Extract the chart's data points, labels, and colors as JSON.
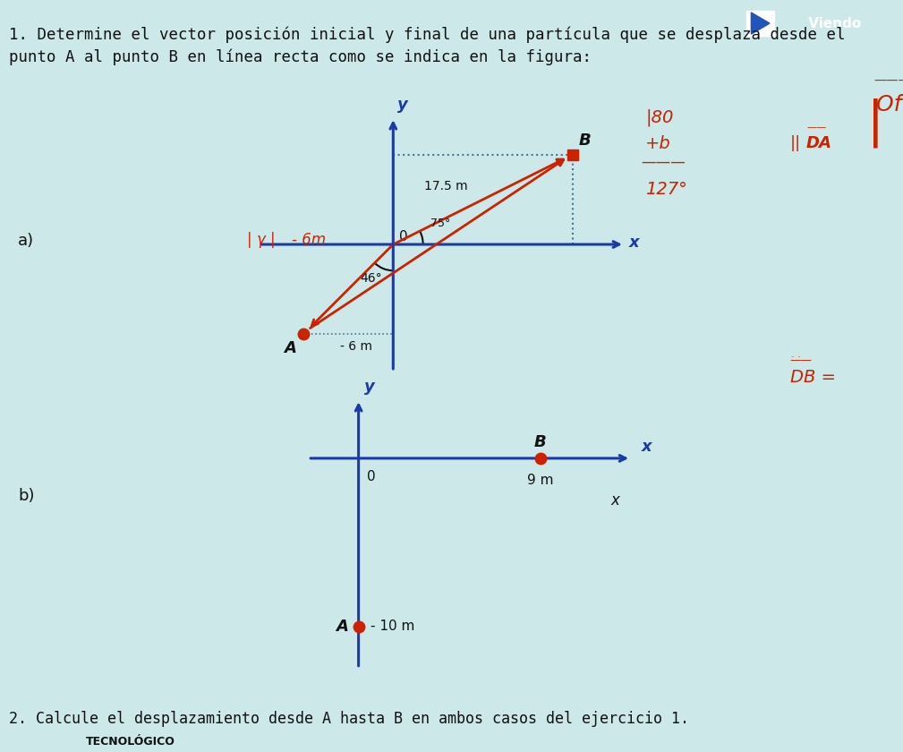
{
  "bg_color": "#cce8e8",
  "title_line1": "1. Determine el vector posición inicial y final de una partícula que se desplaza desde el",
  "title_line2": "punto A al punto B en línea recta como se indica en la figura:",
  "title_fontsize": 12.5,
  "axis_color": "#1a3aaa",
  "red_color": "#cc2200",
  "text_color": "#111111",
  "diagram_a": {
    "A": [
      -6.0,
      -6.0
    ],
    "B": [
      12.0,
      6.0
    ],
    "O": [
      0.0,
      0.0
    ],
    "label_17_5m": "17.5 m",
    "label_minus6m": "- 6 m",
    "label_46": "46°",
    "label_75": "75°",
    "label_B": "B",
    "label_A": "A",
    "label_O": "0",
    "label_x": "x",
    "label_y": "y",
    "note_left1": "| γ |",
    "note_left2": "- 6m"
  },
  "diagram_b": {
    "A": [
      0.0,
      -10.0
    ],
    "B": [
      9.0,
      0.0
    ],
    "O": [
      0.0,
      0.0
    ],
    "label_9m": "9 m",
    "label_minus10m": "- 10 m",
    "label_B": "B",
    "label_A": "A",
    "label_O": "0",
    "label_x": "x",
    "label_y": "y"
  },
  "footer_text": "2. Calcule el desplazamiento desde A hasta B en ambos casos del ejercicio 1.",
  "footer_logo": "TECNOLÓGICO",
  "viendo_text": " Viendo",
  "label_a": "a)",
  "label_b": "b)"
}
